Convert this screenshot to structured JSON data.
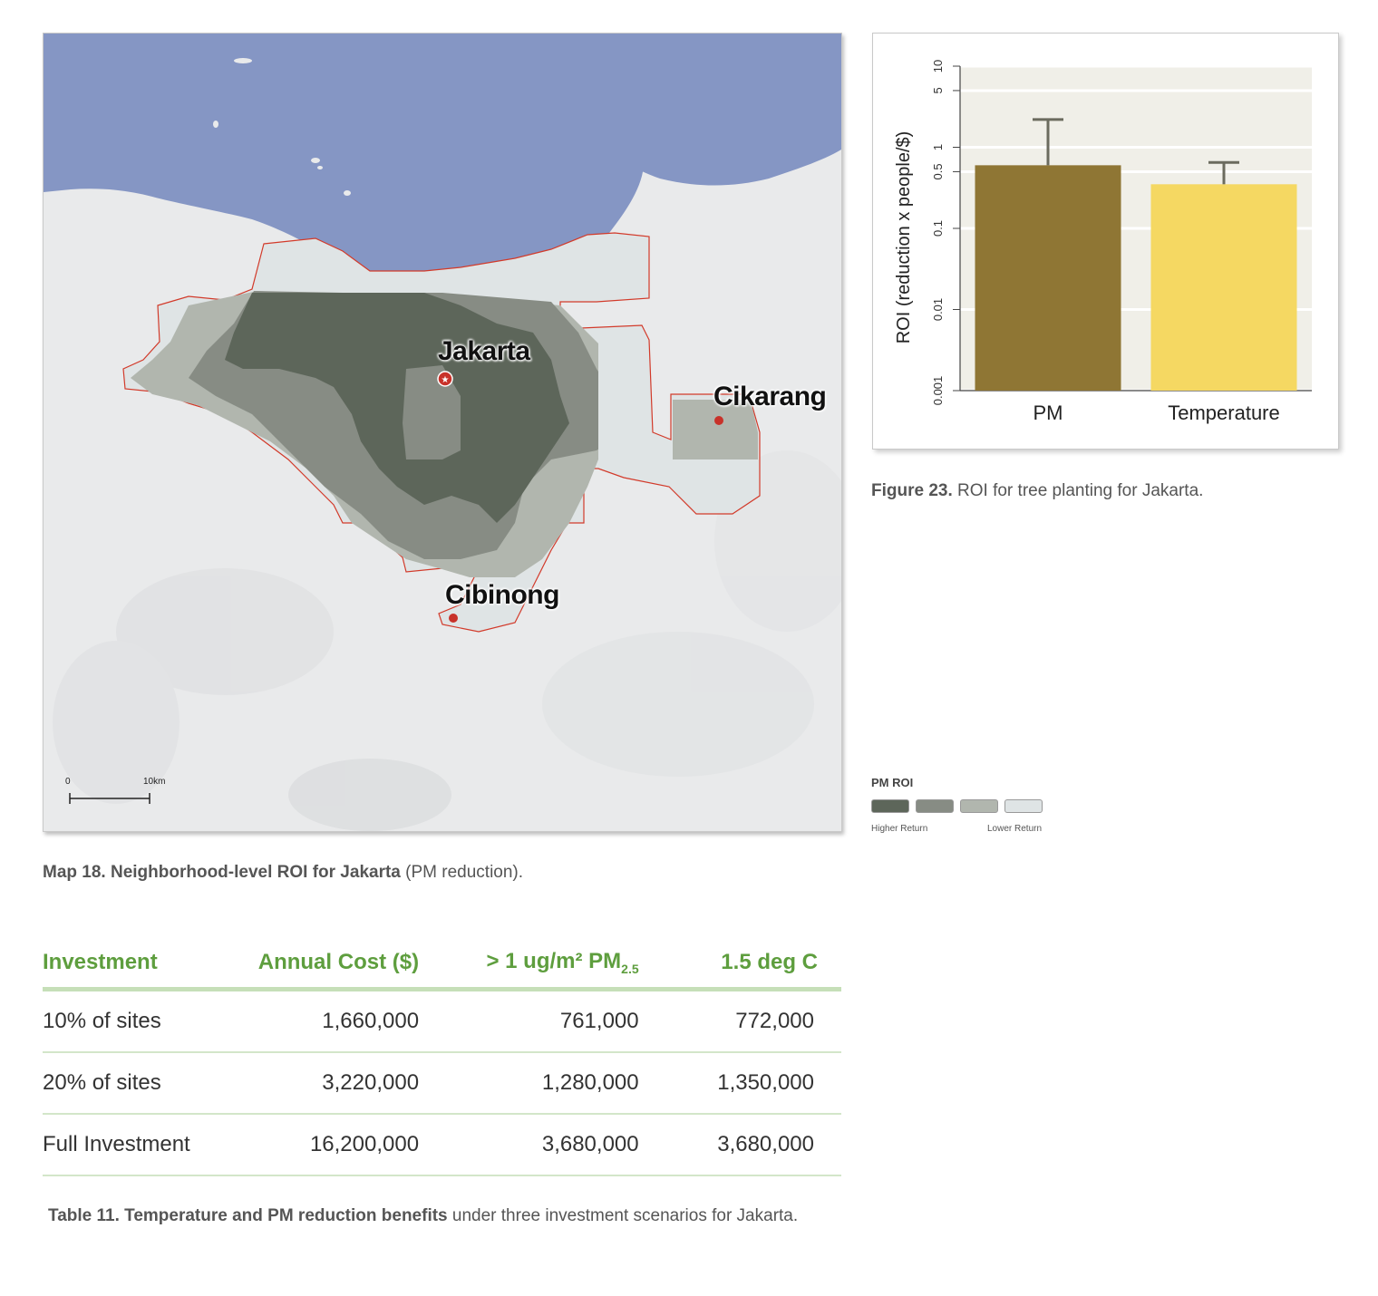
{
  "map": {
    "labels": {
      "jakarta": "Jakarta",
      "cikarang": "Cikarang",
      "cibinong": "Cibinong"
    },
    "scale": {
      "zero": "0",
      "distance": "10km"
    },
    "caption_bold": "Map 18. Neighborhood-level ROI for Jakarta",
    "caption_rest": " (PM reduction).",
    "colors": {
      "sea": "#8596c4",
      "land": "#e9eaeb",
      "outline": "#d23a2a",
      "city_dot": "#c8322a"
    }
  },
  "chart_data": {
    "type": "bar",
    "categories": [
      "PM",
      "Temperature"
    ],
    "values": [
      0.6,
      0.35
    ],
    "error_upper": [
      2.2,
      0.65
    ],
    "ylabel": "ROI (reduction x people/$)",
    "yscale": "log",
    "ylim": [
      0.001,
      10
    ],
    "yticks": [
      "0.001",
      "0.01",
      "0.1",
      "0.5",
      "1",
      "5",
      "10"
    ],
    "grid": true,
    "colors": [
      "#8f7634",
      "#f5d862"
    ],
    "background": "#f0efe8"
  },
  "figure": {
    "caption_bold": "Figure 23.",
    "caption_rest": " ROI for tree planting for Jakarta."
  },
  "legend": {
    "title": "PM ROI",
    "colors": [
      "#5d665a",
      "#878c84",
      "#b1b6ae",
      "#dfe4e5"
    ],
    "higher": "Higher Return",
    "lower": "Lower Return"
  },
  "table": {
    "headers": [
      "Investment",
      "Annual Cost ($)",
      "> 1 ug/m² PM",
      "1.5 deg C"
    ],
    "header_sub": "2.5",
    "rows": [
      [
        "10% of sites",
        "1,660,000",
        "761,000",
        "772,000"
      ],
      [
        "20% of sites",
        "3,220,000",
        "1,280,000",
        "1,350,000"
      ],
      [
        "Full Investment",
        "16,200,000",
        "3,680,000",
        "3,680,000"
      ]
    ],
    "caption_bold": "Table 11. Temperature and PM reduction benefits",
    "caption_rest": " under three investment scenarios for Jakarta."
  }
}
